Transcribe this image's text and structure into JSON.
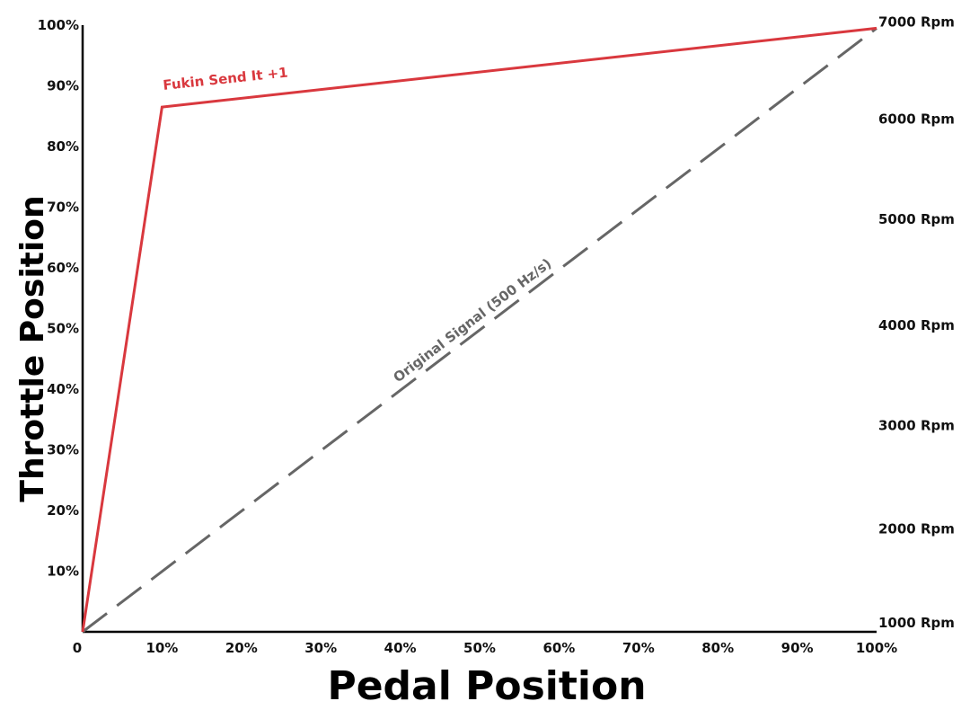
{
  "chart_data": {
    "type": "line",
    "xlabel": "Pedal Position",
    "ylabel": "Throttle Position",
    "xlim": [
      0,
      100
    ],
    "ylim": [
      0,
      100
    ],
    "x_tick_labels": [
      "0",
      "10%",
      "20%",
      "30%",
      "40%",
      "50%",
      "60%",
      "70%",
      "80%",
      "90%",
      "100%"
    ],
    "y_tick_labels": [
      "10%",
      "20%",
      "30%",
      "40%",
      "50%",
      "60%",
      "70%",
      "80%",
      "90%",
      "100%"
    ],
    "right_axis": {
      "tick_labels": [
        "1000 Rpm",
        "2000 Rpm",
        "3000 Rpm",
        "4000 Rpm",
        "5000 Rpm",
        "6000 Rpm",
        "7000 Rpm"
      ],
      "tick_positions_throttle_pct": [
        1.5,
        17,
        34,
        50.5,
        68,
        84.5,
        100.5
      ]
    },
    "grid": false,
    "series": [
      {
        "name": "Fukin Send It +1",
        "color": "#d9383e",
        "style": "solid",
        "x": [
          0,
          10,
          100
        ],
        "y": [
          0,
          86.5,
          99.5
        ]
      },
      {
        "name": "Original Signal (500 Hz/s)",
        "color": "#666666",
        "style": "dashed",
        "x": [
          0,
          100
        ],
        "y": [
          0,
          99.5
        ]
      }
    ]
  }
}
